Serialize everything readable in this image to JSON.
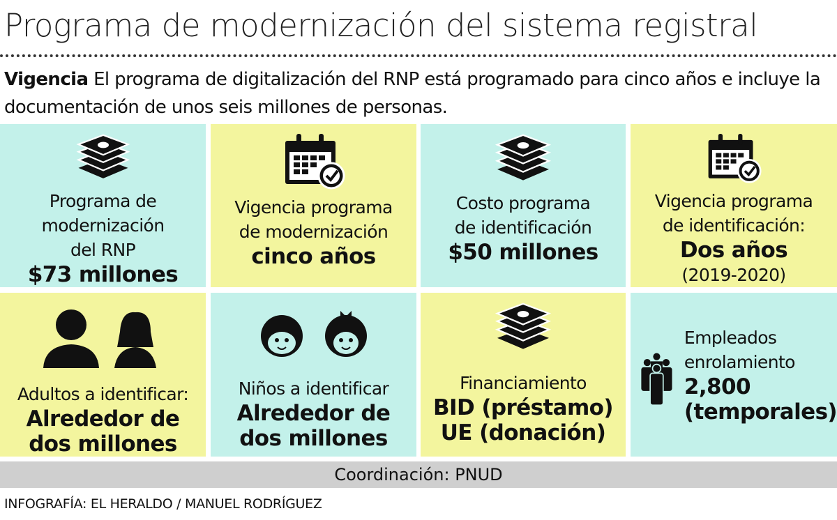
{
  "title": "Programa de modernización del sistema registral",
  "intro": {
    "lead": "Vigencia",
    "text": " El programa de digitalización del RNP está programado para cinco años e incluye la documentación de unos seis millones de personas."
  },
  "colors": {
    "teal": "#c3f1ea",
    "yellow": "#f3f59e",
    "bar": "#cfcfcf"
  },
  "cells": [
    {
      "icon": "money-stack-icon",
      "lines": [
        "Programa de",
        "modernización",
        "del RNP"
      ],
      "value": "$73 millones"
    },
    {
      "icon": "calendar-check-icon",
      "lines": [
        "Vigencia programa",
        "de modernización"
      ],
      "value": "cinco años"
    },
    {
      "icon": "money-stack-icon",
      "lines": [
        "Costo programa",
        "de identificación"
      ],
      "value": "$50 millones"
    },
    {
      "icon": "calendar-check-icon",
      "lines": [
        "Vigencia programa",
        "de identificación:"
      ],
      "value": "Dos años",
      "note": "(2019-2020)"
    },
    {
      "icon": "adults-icon",
      "lines": [
        "Adultos a identificar:"
      ],
      "value": "Alrededor de",
      "value2": "dos millones"
    },
    {
      "icon": "children-icon",
      "lines": [
        "Niños a identificar"
      ],
      "value": "Alrededor de",
      "value2": "dos millones"
    },
    {
      "icon": "money-stack-icon",
      "lines": [
        "Financiamiento"
      ],
      "value": "BID (préstamo)",
      "value2": "UE (donación)"
    },
    {
      "icon": "group-icon",
      "lines": [
        "Empleados",
        "enrolamiento"
      ],
      "value": "2,800",
      "value2": "(temporales)"
    }
  ],
  "coordination": "Coordinación: PNUD",
  "credit": "INFOGRAFÍA: EL HERALDO / MANUEL RODRÍGUEZ"
}
